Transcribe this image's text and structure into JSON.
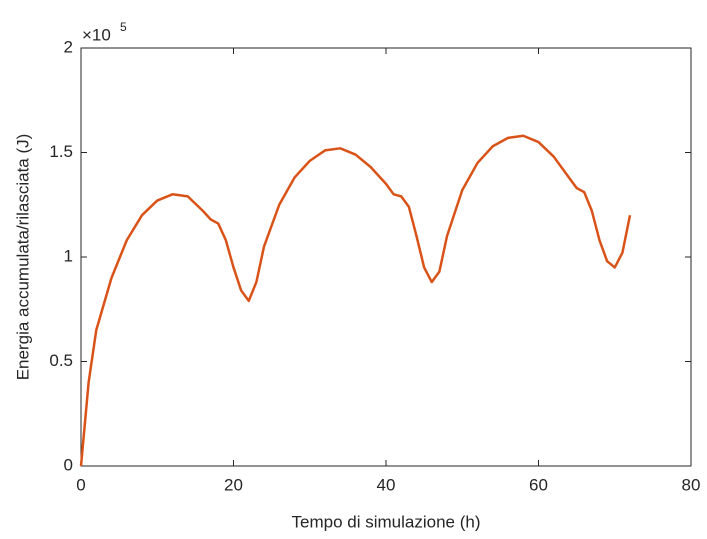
{
  "chart_data": {
    "type": "line",
    "xlabel": "Tempo di simulazione (h)",
    "ylabel": "Energia accumulata/rilasciata (J)",
    "y_exponent": {
      "base": "×10",
      "power": "5"
    },
    "x": [
      0,
      1,
      2,
      4,
      6,
      8,
      10,
      12,
      14,
      16,
      17,
      18,
      19,
      20,
      21,
      22,
      23,
      24,
      26,
      28,
      30,
      32,
      34,
      36,
      38,
      40,
      41,
      42,
      43,
      44,
      45,
      46,
      47,
      48,
      50,
      52,
      54,
      56,
      58,
      60,
      62,
      64,
      65,
      66,
      67,
      68,
      69,
      70,
      71,
      72
    ],
    "series": [
      {
        "color": "#d95319",
        "values": [
          0,
          0.4,
          0.65,
          0.9,
          1.08,
          1.2,
          1.27,
          1.3,
          1.29,
          1.22,
          1.18,
          1.16,
          1.08,
          0.95,
          0.84,
          0.79,
          0.88,
          1.05,
          1.25,
          1.38,
          1.46,
          1.51,
          1.52,
          1.49,
          1.43,
          1.35,
          1.3,
          1.29,
          1.24,
          1.1,
          0.95,
          0.88,
          0.93,
          1.1,
          1.32,
          1.45,
          1.53,
          1.57,
          1.58,
          1.55,
          1.48,
          1.38,
          1.33,
          1.31,
          1.22,
          1.08,
          0.98,
          0.95,
          1.02,
          1.2
        ]
      }
    ],
    "xlim": [
      0,
      80
    ],
    "xticks": [
      0,
      20,
      40,
      60,
      80
    ],
    "ylim": [
      0,
      2
    ],
    "yticks": [
      0,
      0.5,
      1,
      1.5,
      2
    ]
  }
}
